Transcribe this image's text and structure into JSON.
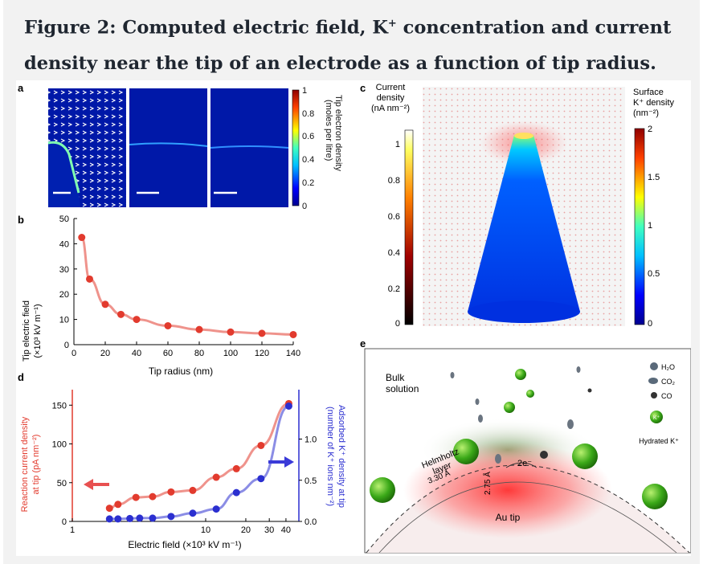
{
  "title": {
    "line1_pre": "Figure 2: Computed electric field, K",
    "line1_sup": "+",
    "line1_post": " concentration and current",
    "line2": "density near the tip of an electrode as a function of tip radius."
  },
  "panel_a": {
    "label": "a",
    "colorbar_ticks": [
      "1",
      "0.8",
      "0.6",
      "0.4",
      "0.2",
      "0"
    ],
    "colorbar_label_1": "Tip electron density",
    "colorbar_label_2": "(moles per litre)"
  },
  "panel_b": {
    "label": "b",
    "ylabel_1": "Tip electric field",
    "ylabel_2": "(×10³ kV m⁻¹)",
    "xlabel": "Tip radius (nm)",
    "xticks": [
      "0",
      "20",
      "40",
      "60",
      "80",
      "100",
      "120",
      "140"
    ],
    "yticks": [
      "0",
      "10",
      "20",
      "30",
      "40",
      "50"
    ]
  },
  "panel_c": {
    "label": "c",
    "left_bar_title": [
      "Current",
      "density",
      "(nA nm⁻²)"
    ],
    "left_ticks": [
      "1",
      "0.8",
      "0.6",
      "0.4",
      "0.2",
      "0"
    ],
    "right_bar_title": [
      "Surface",
      "K⁺ density",
      "(nm⁻²)"
    ],
    "right_ticks": [
      "2",
      "1.5",
      "1",
      "0.5",
      "0"
    ]
  },
  "panel_d": {
    "label": "d",
    "ylabel_left_1": "Reaction current density",
    "ylabel_left_2": "at tip (pA nm⁻²)",
    "ylabel_right_1": "Adsorbed K⁺ density at tip",
    "ylabel_right_2": "(number of K⁺ ions nm⁻²)",
    "xlabel": "Electric field (×10³ kV m⁻¹)",
    "xticks": [
      "1",
      "10",
      "20",
      "30",
      "40"
    ],
    "yticks_left": [
      "0",
      "50",
      "100",
      "150"
    ],
    "yticks_right": [
      "0.0",
      "0.5",
      "1.0"
    ]
  },
  "panel_e": {
    "label": "e",
    "bulk": [
      "Bulk",
      "solution"
    ],
    "helmholtz": [
      "Helmholtz",
      "layer"
    ],
    "distance_1": "3.30 Å",
    "distance_2": "2.75 Å",
    "electrons": "2e⁻",
    "au_tip": "Au tip",
    "legend": [
      "H₂O",
      "CO₂",
      "CO"
    ],
    "hydrated": "Hydrated K⁺",
    "k_label": "K⁺"
  },
  "chart_data": [
    {
      "type": "scatter",
      "panel": "b",
      "xlabel": "Tip radius (nm)",
      "ylabel": "Tip electric field (×10³ kV m⁻¹)",
      "xlim": [
        0,
        140
      ],
      "ylim": [
        0,
        50
      ],
      "color": "#e23b2e",
      "x": [
        5,
        10,
        20,
        30,
        40,
        60,
        80,
        100,
        120,
        140
      ],
      "values": [
        42.5,
        26,
        16,
        12,
        10,
        7.5,
        6,
        5,
        4.5,
        4
      ]
    },
    {
      "type": "scatter",
      "panel": "d",
      "xlabel": "Electric field (×10³ kV m⁻¹)",
      "xscale": "log",
      "xlim": [
        1,
        50
      ],
      "series": [
        {
          "axis": "left",
          "color": "#e23b2e",
          "x": [
            1.9,
            2.2,
            3.0,
            4.0,
            5.5,
            8.0,
            12,
            17,
            26,
            42
          ],
          "values": [
            17,
            22,
            31,
            32,
            38,
            40,
            57,
            68,
            98,
            152
          ],
          "ylim": [
            0,
            170
          ]
        },
        {
          "axis": "right",
          "color": "#2b2fd0",
          "x": [
            1.9,
            2.2,
            2.7,
            3.2,
            4.0,
            5.5,
            8.0,
            12,
            17,
            26,
            42
          ],
          "values": [
            0.03,
            0.03,
            0.035,
            0.04,
            0.04,
            0.06,
            0.1,
            0.15,
            0.35,
            0.52,
            1.4
          ],
          "ylim": [
            0,
            1.6
          ]
        }
      ]
    }
  ]
}
